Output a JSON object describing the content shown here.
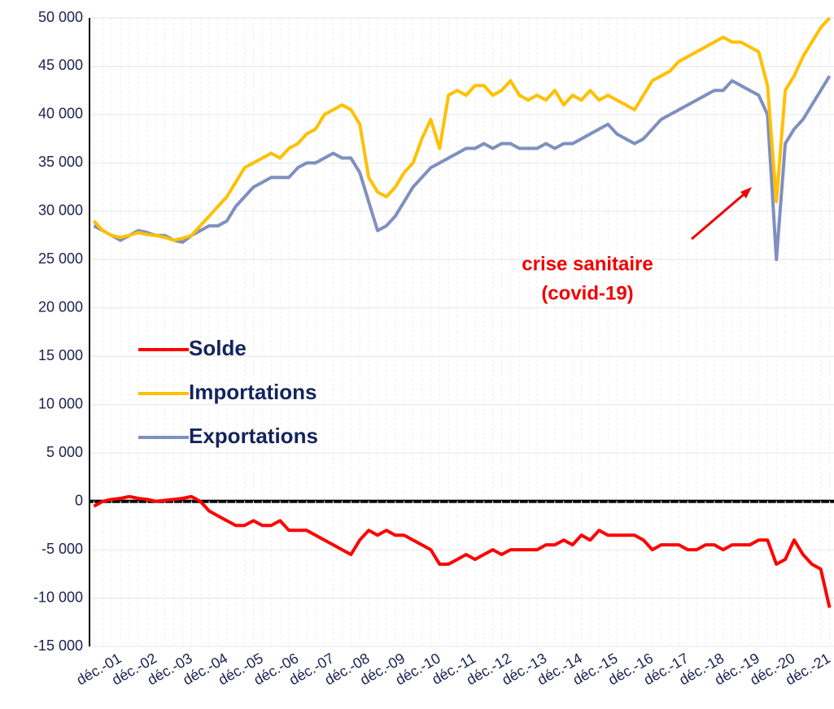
{
  "chart_data": {
    "type": "line",
    "categories": [
      null,
      null,
      null,
      "déc.-01",
      null,
      null,
      null,
      "déc.-02",
      null,
      null,
      null,
      "déc.-03",
      null,
      null,
      null,
      "déc.-04",
      null,
      null,
      null,
      "déc.-05",
      null,
      null,
      null,
      "déc.-06",
      null,
      null,
      null,
      "déc.-07",
      null,
      null,
      null,
      "déc.-08",
      null,
      null,
      null,
      "déc.-09",
      null,
      null,
      null,
      "déc.-10",
      null,
      null,
      null,
      "déc.-11",
      null,
      null,
      null,
      "déc.-12",
      null,
      null,
      null,
      "déc.-13",
      null,
      null,
      null,
      "déc.-14",
      null,
      null,
      null,
      "déc.-15",
      null,
      null,
      null,
      "déc.-16",
      null,
      null,
      null,
      "déc.-17",
      null,
      null,
      null,
      "déc.-18",
      null,
      null,
      null,
      "déc.-19",
      null,
      null,
      null,
      "déc.-20",
      null,
      null,
      null,
      "déc.-21"
    ],
    "series": [
      {
        "name": "Solde",
        "color": "#ff0000",
        "values": [
          -500,
          0,
          200,
          300,
          500,
          300,
          200,
          0,
          100,
          200,
          300,
          500,
          0,
          -1000,
          -1500,
          -2000,
          -2500,
          -2500,
          -2000,
          -2500,
          -2500,
          -2000,
          -3000,
          -3000,
          -3000,
          -3500,
          -4000,
          -4500,
          -5000,
          -5500,
          -4000,
          -3000,
          -3500,
          -3000,
          -3500,
          -3500,
          -4000,
          -4500,
          -5000,
          -6500,
          -6500,
          -6000,
          -5500,
          -6000,
          -5500,
          -5000,
          -5500,
          -5000,
          -5000,
          -5000,
          -5000,
          -4500,
          -4500,
          -4000,
          -4500,
          -3500,
          -4000,
          -3000,
          -3500,
          -3500,
          -3500,
          -3500,
          -4000,
          -5000,
          -4500,
          -4500,
          -4500,
          -5000,
          -5000,
          -4500,
          -4500,
          -5000,
          -4500,
          -4500,
          -4500,
          -4000,
          -4000,
          -6500,
          -6000,
          -4000,
          -5500,
          -6500,
          -7000,
          -11000
        ]
      },
      {
        "name": "Importations",
        "color": "#ffc000",
        "values": [
          29000,
          28000,
          27500,
          27300,
          27500,
          27800,
          27600,
          27500,
          27300,
          27000,
          27200,
          27500,
          28500,
          29500,
          30500,
          31500,
          33000,
          34500,
          35000,
          35500,
          36000,
          35500,
          36500,
          37000,
          38000,
          38500,
          40000,
          40500,
          41000,
          40500,
          39000,
          33500,
          32000,
          31500,
          32500,
          34000,
          35000,
          37500,
          39500,
          36500,
          42000,
          42500,
          42000,
          43000,
          43000,
          42000,
          42500,
          43500,
          42000,
          41500,
          42000,
          41500,
          42500,
          41000,
          42000,
          41500,
          42500,
          41500,
          42000,
          41500,
          41000,
          40500,
          42000,
          43500,
          44000,
          44500,
          45500,
          46000,
          46500,
          47000,
          47500,
          48000,
          47500,
          47500,
          47000,
          46500,
          43000,
          31000,
          42500,
          44000,
          46000,
          47500,
          49000,
          50000
        ]
      },
      {
        "name": "Exportations",
        "color": "#7f8fbf",
        "values": [
          28500,
          28000,
          27500,
          27000,
          27500,
          28000,
          27800,
          27500,
          27500,
          27000,
          26800,
          27500,
          28000,
          28500,
          28500,
          29000,
          30500,
          31500,
          32500,
          33000,
          33500,
          33500,
          33500,
          34500,
          35000,
          35000,
          35500,
          36000,
          35500,
          35500,
          34000,
          31000,
          28000,
          28500,
          29500,
          31000,
          32500,
          33500,
          34500,
          35000,
          35500,
          36000,
          36500,
          36500,
          37000,
          36500,
          37000,
          37000,
          36500,
          36500,
          36500,
          37000,
          36500,
          37000,
          37000,
          37500,
          38000,
          38500,
          39000,
          38000,
          37500,
          37000,
          37500,
          38500,
          39500,
          40000,
          40500,
          41000,
          41500,
          42000,
          42500,
          42500,
          43500,
          43000,
          42500,
          42000,
          40000,
          25000,
          37000,
          38500,
          39500,
          41000,
          42500,
          44000
        ]
      }
    ],
    "ylim": [
      -15000,
      50000
    ],
    "yticks": [
      {
        "value": 50000,
        "label": "50 000"
      },
      {
        "value": 45000,
        "label": "45 000"
      },
      {
        "value": 40000,
        "label": "40 000"
      },
      {
        "value": 35000,
        "label": "35 000"
      },
      {
        "value": 30000,
        "label": "30 000"
      },
      {
        "value": 25000,
        "label": "25 000"
      },
      {
        "value": 20000,
        "label": "20 000"
      },
      {
        "value": 15000,
        "label": "15 000"
      },
      {
        "value": 10000,
        "label": "10 000"
      },
      {
        "value": 5000,
        "label": "5 000"
      },
      0,
      {
        "value": -5000,
        "label": "-5 000"
      },
      {
        "value": -10000,
        "label": "-10 000"
      },
      {
        "value": -15000,
        "label": "-15 000"
      }
    ],
    "grid": true,
    "annotations": [
      "crise sanitaire",
      "(covid-19)"
    ]
  }
}
